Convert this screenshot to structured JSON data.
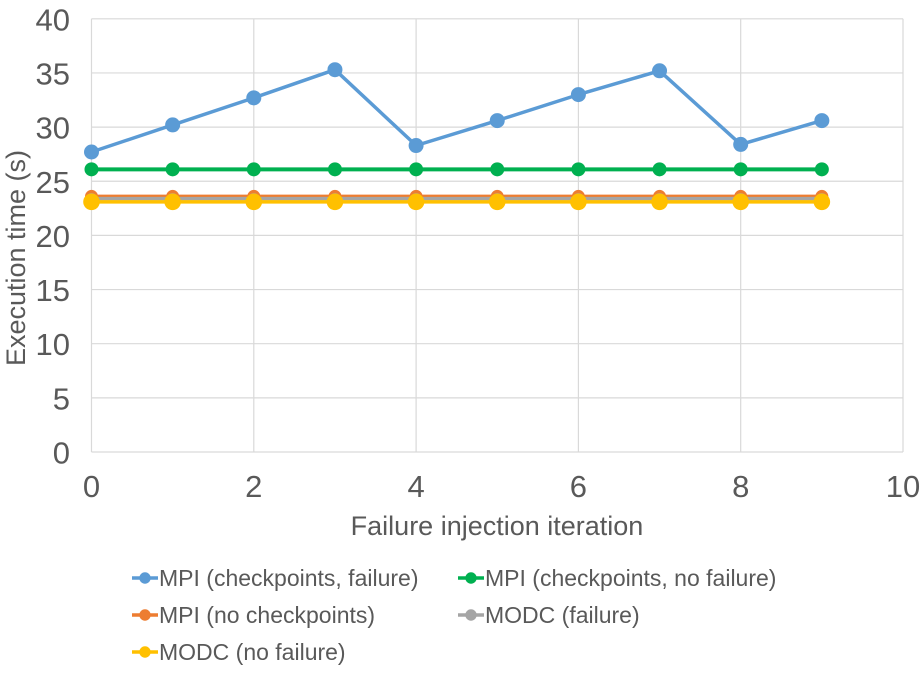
{
  "chart_data": {
    "type": "line",
    "title": "",
    "xlabel": "Failure injection iteration",
    "ylabel": "Execution time (s)",
    "x": [
      0,
      1,
      2,
      3,
      4,
      5,
      6,
      7,
      8,
      9
    ],
    "xlim": [
      0,
      10
    ],
    "ylim": [
      0,
      40
    ],
    "x_ticks": [
      0,
      2,
      4,
      6,
      8,
      10
    ],
    "y_ticks": [
      0,
      5,
      10,
      15,
      20,
      25,
      30,
      35,
      40
    ],
    "grid": true,
    "legend_position": "bottom",
    "series": [
      {
        "name": "MPI (checkpoints, failure)",
        "color": "#5B9BD5",
        "line_width": 3.5,
        "marker_radius": 7.5,
        "values": [
          27.7,
          30.2,
          32.7,
          35.3,
          28.3,
          30.6,
          33.0,
          35.2,
          28.4,
          30.6
        ]
      },
      {
        "name": "MPI (checkpoints, no failure)",
        "color": "#00B050",
        "line_width": 4,
        "marker_radius": 7,
        "values": [
          26.1,
          26.1,
          26.1,
          26.1,
          26.1,
          26.1,
          26.1,
          26.1,
          26.1,
          26.1
        ]
      },
      {
        "name": "MPI (no checkpoints)",
        "color": "#ED7D31",
        "line_width": 3.5,
        "marker_radius": 6.5,
        "values": [
          23.6,
          23.6,
          23.6,
          23.6,
          23.6,
          23.6,
          23.6,
          23.6,
          23.6,
          23.6
        ]
      },
      {
        "name": "MODC (failure)",
        "color": "#A5A5A5",
        "line_width": 3.5,
        "marker_radius": 5.5,
        "values": [
          23.4,
          23.4,
          23.4,
          23.4,
          23.4,
          23.4,
          23.4,
          23.4,
          23.4,
          23.4
        ]
      },
      {
        "name": "MODC (no failure)",
        "color": "#FFC000",
        "line_width": 3.5,
        "marker_radius": 8.3,
        "values": [
          23.1,
          23.1,
          23.1,
          23.1,
          23.1,
          23.1,
          23.1,
          23.1,
          23.1,
          23.1
        ]
      }
    ],
    "colors": {
      "text": "#595959",
      "gridline": "#D9D9D9",
      "background": "#FFFFFF"
    }
  }
}
